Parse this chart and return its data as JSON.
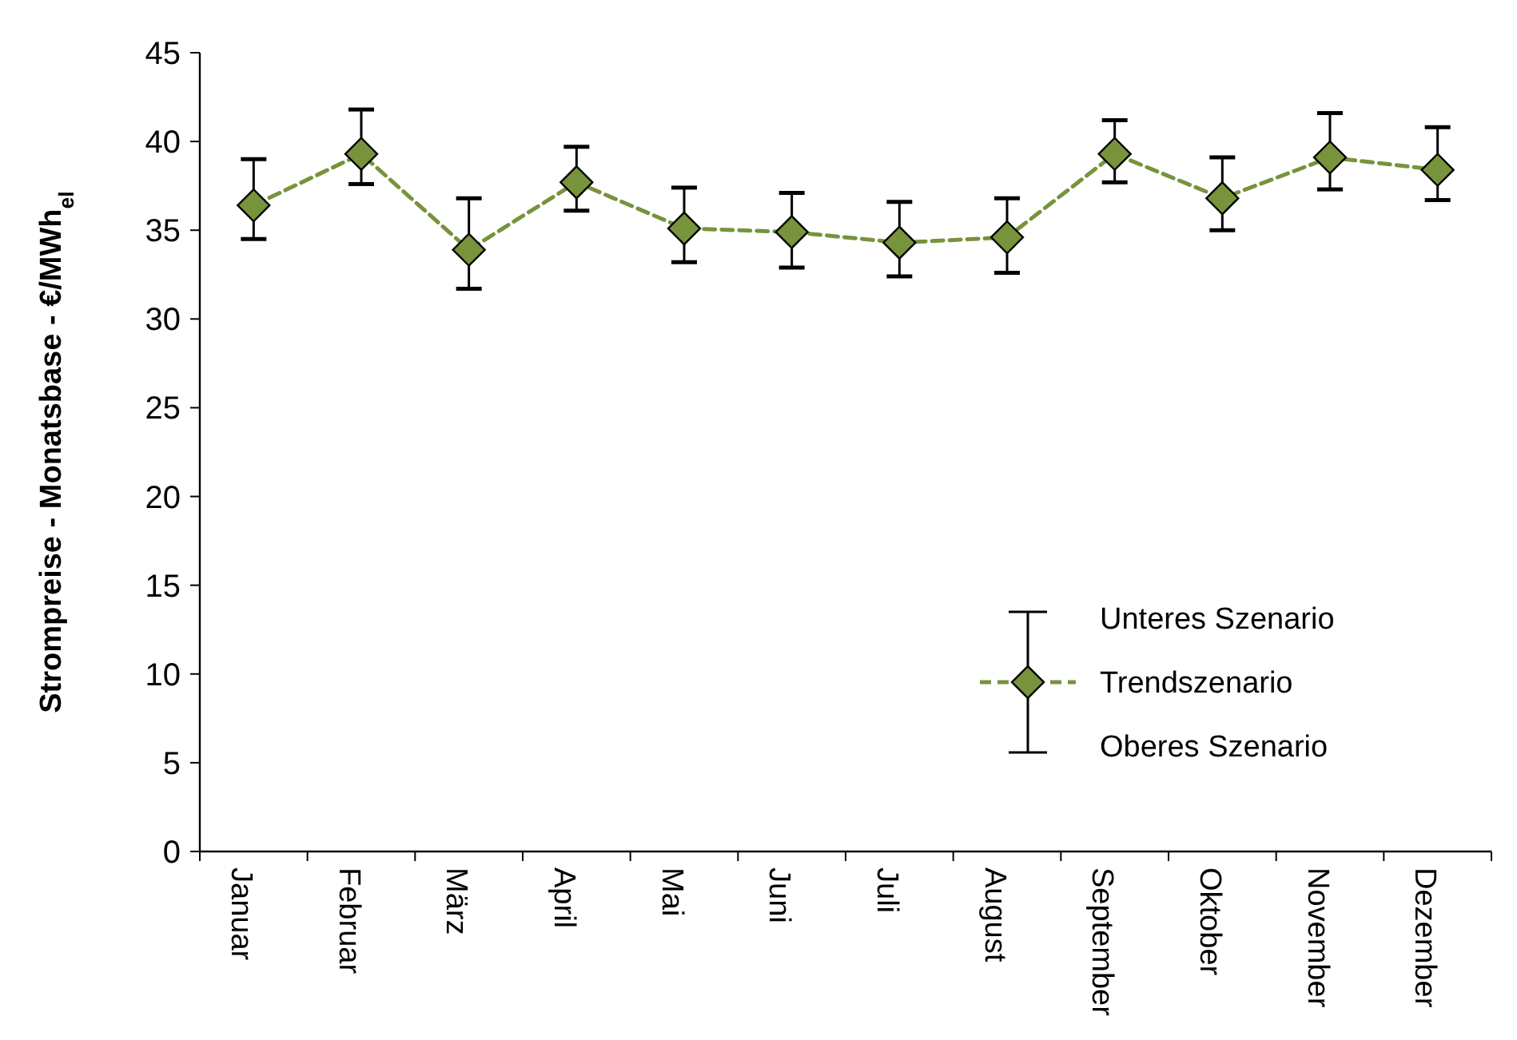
{
  "chart_data": {
    "type": "line",
    "ylabel": "Strompreise - Monatsbase - €/MWh$_{el}$",
    "categories": [
      "Januar",
      "Februar",
      "März",
      "April",
      "Mai",
      "Juni",
      "Juli",
      "August",
      "September",
      "Oktober",
      "November",
      "Dezember"
    ],
    "series": [
      {
        "name": "Trendszenario",
        "color": "#77933c",
        "values": [
          36.4,
          39.3,
          33.9,
          37.7,
          35.1,
          34.9,
          34.3,
          34.6,
          39.3,
          36.8,
          39.1,
          38.4
        ],
        "errors": [
          [
            34.5,
            39.0
          ],
          [
            37.6,
            41.8
          ],
          [
            31.7,
            36.8
          ],
          [
            36.1,
            39.7
          ],
          [
            33.2,
            37.4
          ],
          [
            32.9,
            37.1
          ],
          [
            32.4,
            36.6
          ],
          [
            32.6,
            36.8
          ],
          [
            37.7,
            41.2
          ],
          [
            35.0,
            39.1
          ],
          [
            37.3,
            41.6
          ],
          [
            36.7,
            40.8
          ]
        ]
      }
    ],
    "annotations": [
      "Unteres Szenario",
      "Oberes Szenario"
    ],
    "ylim": [
      0,
      45
    ],
    "yticks": [
      0,
      5,
      10,
      15,
      20,
      25,
      30,
      35,
      40,
      45
    ],
    "grid": false,
    "legend": "bottom right",
    "marker": "diamond",
    "line_style": "dashed"
  }
}
